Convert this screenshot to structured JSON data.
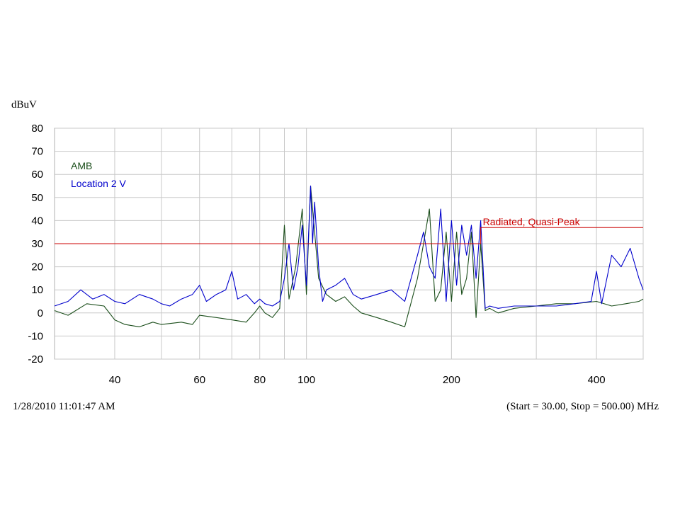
{
  "chart_data": {
    "type": "line",
    "x_scale": "log",
    "xlim": [
      30,
      500
    ],
    "ylim": [
      -20,
      80
    ],
    "y_ticks": [
      80,
      70,
      60,
      50,
      40,
      30,
      20,
      10,
      0,
      -10,
      -20
    ],
    "x_ticks": [
      40,
      60,
      80,
      100,
      200,
      400
    ],
    "x_minor_gridlines": [
      50,
      70,
      90,
      300,
      500
    ],
    "grid": true,
    "ylabel": "dBuV",
    "legend_position": "top-left",
    "series": [
      {
        "name": "AMB",
        "color": "#1a4d1a",
        "points": [
          [
            30,
            1
          ],
          [
            32,
            -1
          ],
          [
            35,
            4
          ],
          [
            38,
            3
          ],
          [
            40,
            -3
          ],
          [
            42,
            -5
          ],
          [
            45,
            -6
          ],
          [
            48,
            -4
          ],
          [
            50,
            -5
          ],
          [
            55,
            -4
          ],
          [
            58,
            -5
          ],
          [
            60,
            -1
          ],
          [
            65,
            -2
          ],
          [
            70,
            -3
          ],
          [
            75,
            -4
          ],
          [
            78,
            0
          ],
          [
            80,
            3
          ],
          [
            82,
            0
          ],
          [
            85,
            -2
          ],
          [
            88,
            2
          ],
          [
            90,
            38
          ],
          [
            92,
            6
          ],
          [
            95,
            20
          ],
          [
            98,
            45
          ],
          [
            100,
            8
          ],
          [
            102,
            55
          ],
          [
            104,
            35
          ],
          [
            106,
            15
          ],
          [
            110,
            8
          ],
          [
            115,
            5
          ],
          [
            120,
            7
          ],
          [
            125,
            3
          ],
          [
            130,
            0
          ],
          [
            140,
            -2
          ],
          [
            150,
            -4
          ],
          [
            160,
            -6
          ],
          [
            170,
            15
          ],
          [
            175,
            30
          ],
          [
            180,
            45
          ],
          [
            185,
            5
          ],
          [
            190,
            10
          ],
          [
            195,
            35
          ],
          [
            200,
            5
          ],
          [
            205,
            35
          ],
          [
            210,
            8
          ],
          [
            215,
            15
          ],
          [
            220,
            35
          ],
          [
            225,
            -2
          ],
          [
            230,
            30
          ],
          [
            235,
            1
          ],
          [
            240,
            2
          ],
          [
            250,
            0
          ],
          [
            270,
            2
          ],
          [
            300,
            3
          ],
          [
            330,
            4
          ],
          [
            360,
            4
          ],
          [
            400,
            5
          ],
          [
            430,
            3
          ],
          [
            460,
            4
          ],
          [
            490,
            5
          ],
          [
            500,
            6
          ]
        ]
      },
      {
        "name": "Location 2 V",
        "color": "#0000cc",
        "points": [
          [
            30,
            3
          ],
          [
            32,
            5
          ],
          [
            34,
            10
          ],
          [
            36,
            6
          ],
          [
            38,
            8
          ],
          [
            40,
            5
          ],
          [
            42,
            4
          ],
          [
            45,
            8
          ],
          [
            48,
            6
          ],
          [
            50,
            4
          ],
          [
            52,
            3
          ],
          [
            55,
            6
          ],
          [
            58,
            8
          ],
          [
            60,
            12
          ],
          [
            62,
            5
          ],
          [
            65,
            8
          ],
          [
            68,
            10
          ],
          [
            70,
            18
          ],
          [
            72,
            6
          ],
          [
            75,
            8
          ],
          [
            78,
            4
          ],
          [
            80,
            6
          ],
          [
            82,
            4
          ],
          [
            85,
            3
          ],
          [
            88,
            5
          ],
          [
            90,
            15
          ],
          [
            92,
            30
          ],
          [
            94,
            10
          ],
          [
            96,
            20
          ],
          [
            98,
            38
          ],
          [
            100,
            12
          ],
          [
            102,
            55
          ],
          [
            103,
            30
          ],
          [
            104,
            48
          ],
          [
            106,
            20
          ],
          [
            108,
            5
          ],
          [
            110,
            10
          ],
          [
            115,
            12
          ],
          [
            120,
            15
          ],
          [
            125,
            8
          ],
          [
            130,
            6
          ],
          [
            140,
            8
          ],
          [
            150,
            10
          ],
          [
            160,
            5
          ],
          [
            170,
            25
          ],
          [
            175,
            35
          ],
          [
            180,
            20
          ],
          [
            185,
            15
          ],
          [
            190,
            45
          ],
          [
            195,
            5
          ],
          [
            200,
            40
          ],
          [
            205,
            12
          ],
          [
            210,
            38
          ],
          [
            215,
            25
          ],
          [
            220,
            38
          ],
          [
            225,
            15
          ],
          [
            230,
            40
          ],
          [
            235,
            2
          ],
          [
            240,
            3
          ],
          [
            250,
            2
          ],
          [
            270,
            3
          ],
          [
            300,
            3
          ],
          [
            330,
            3
          ],
          [
            360,
            4
          ],
          [
            390,
            5
          ],
          [
            400,
            18
          ],
          [
            410,
            4
          ],
          [
            430,
            25
          ],
          [
            450,
            20
          ],
          [
            470,
            28
          ],
          [
            490,
            15
          ],
          [
            500,
            10
          ]
        ]
      },
      {
        "name": "Radiated, Quasi-Peak",
        "color": "#cc0000",
        "points": [
          [
            30,
            30
          ],
          [
            230,
            30
          ],
          [
            230,
            37
          ],
          [
            500,
            37
          ]
        ]
      }
    ]
  },
  "footer": {
    "timestamp": "1/28/2010 11:01:47 AM",
    "range": "(Start = 30.00, Stop = 500.00) MHz"
  }
}
